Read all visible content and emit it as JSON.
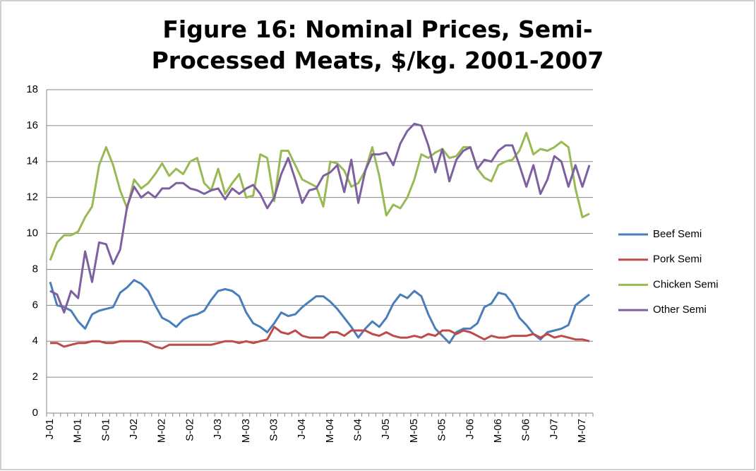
{
  "chart_data": {
    "type": "line",
    "title": "Figure 16: Nominal Prices, Semi-Processed Meats, $/kg. 2001-2007",
    "categories": [
      "J-01",
      null,
      null,
      null,
      "M-01",
      null,
      null,
      null,
      "S-01",
      null,
      null,
      null,
      "J-02",
      null,
      null,
      null,
      "M-02",
      null,
      null,
      null,
      "S-02",
      null,
      null,
      null,
      "J-03",
      null,
      null,
      null,
      "M-03",
      null,
      null,
      null,
      "S-03",
      null,
      null,
      null,
      "J-04",
      null,
      null,
      null,
      "M-04",
      null,
      null,
      null,
      "S-04",
      null,
      null,
      null,
      "J-05",
      null,
      null,
      null,
      "M-05",
      null,
      null,
      null,
      "S-05",
      null,
      null,
      null,
      "J-06",
      null,
      null,
      null,
      "M-06",
      null,
      null,
      null,
      "S-06",
      null,
      null,
      null,
      "J-07",
      null,
      null,
      null,
      "M-07",
      null
    ],
    "series": [
      {
        "name": "Beef Semi",
        "color": "#4a7ebb",
        "values": [
          7.3,
          6.0,
          5.9,
          5.7,
          5.1,
          4.7,
          5.5,
          5.7,
          5.8,
          5.9,
          6.7,
          7.0,
          7.4,
          7.2,
          6.8,
          6.0,
          5.3,
          5.1,
          4.8,
          5.2,
          5.4,
          5.5,
          5.7,
          6.3,
          6.8,
          6.9,
          6.8,
          6.5,
          5.6,
          5.0,
          4.8,
          4.5,
          5.0,
          5.6,
          5.4,
          5.5,
          5.9,
          6.2,
          6.5,
          6.5,
          6.2,
          5.8,
          5.3,
          4.8,
          4.2,
          4.7,
          5.1,
          4.8,
          5.3,
          6.1,
          6.6,
          6.4,
          6.8,
          6.5,
          5.5,
          4.7,
          4.3,
          3.9,
          4.5,
          4.7,
          4.7,
          5.0,
          5.9,
          6.1,
          6.7,
          6.6,
          6.1,
          5.3,
          4.9,
          4.4,
          4.1,
          4.5,
          4.6,
          4.7,
          4.9,
          6.0,
          6.3,
          6.6
        ]
      },
      {
        "name": "Pork Semi",
        "color": "#be4b48",
        "values": [
          3.9,
          3.9,
          3.7,
          3.8,
          3.9,
          3.9,
          4.0,
          4.0,
          3.9,
          3.9,
          4.0,
          4.0,
          4.0,
          4.0,
          3.9,
          3.7,
          3.6,
          3.8,
          3.8,
          3.8,
          3.8,
          3.8,
          3.8,
          3.8,
          3.9,
          4.0,
          4.0,
          3.9,
          4.0,
          3.9,
          4.0,
          4.1,
          4.8,
          4.5,
          4.4,
          4.6,
          4.3,
          4.2,
          4.2,
          4.2,
          4.5,
          4.5,
          4.3,
          4.6,
          4.6,
          4.6,
          4.4,
          4.3,
          4.5,
          4.3,
          4.2,
          4.2,
          4.3,
          4.2,
          4.4,
          4.3,
          4.6,
          4.6,
          4.4,
          4.6,
          4.5,
          4.3,
          4.1,
          4.3,
          4.2,
          4.2,
          4.3,
          4.3,
          4.3,
          4.4,
          4.2,
          4.4,
          4.2,
          4.3,
          4.2,
          4.1,
          4.1,
          4.0
        ]
      },
      {
        "name": "Chicken Semi",
        "color": "#98b954",
        "values": [
          8.5,
          9.5,
          9.9,
          9.9,
          10.1,
          10.9,
          11.5,
          13.8,
          14.8,
          13.8,
          12.4,
          11.4,
          13.0,
          12.5,
          12.8,
          13.3,
          13.9,
          13.2,
          13.6,
          13.3,
          14.0,
          14.2,
          12.8,
          12.4,
          13.6,
          12.2,
          12.8,
          13.3,
          12.0,
          12.1,
          14.4,
          14.2,
          11.8,
          14.6,
          14.6,
          13.8,
          13.0,
          12.8,
          12.6,
          11.5,
          14.0,
          13.9,
          13.5,
          12.6,
          12.8,
          13.5,
          14.8,
          13.2,
          11.0,
          11.6,
          11.4,
          12.0,
          13.0,
          14.4,
          14.2,
          14.5,
          14.7,
          14.2,
          14.3,
          14.8,
          14.8,
          13.6,
          13.1,
          12.9,
          13.8,
          14.0,
          14.1,
          14.6,
          15.6,
          14.4,
          14.7,
          14.6,
          14.8,
          15.1,
          14.8,
          12.5,
          10.9,
          11.1
        ]
      },
      {
        "name": "Other Semi",
        "color": "#7d60a0",
        "values": [
          6.8,
          6.6,
          5.6,
          6.8,
          6.4,
          9.0,
          7.3,
          9.5,
          9.4,
          8.3,
          9.1,
          11.5,
          12.6,
          12.0,
          12.3,
          12.0,
          12.5,
          12.5,
          12.8,
          12.8,
          12.5,
          12.4,
          12.2,
          12.4,
          12.5,
          11.9,
          12.5,
          12.2,
          12.5,
          12.7,
          12.2,
          11.4,
          12.0,
          13.3,
          14.2,
          13.0,
          11.7,
          12.4,
          12.5,
          13.2,
          13.4,
          13.8,
          12.3,
          14.1,
          11.7,
          13.5,
          14.4,
          14.4,
          14.5,
          13.8,
          15.0,
          15.7,
          16.1,
          16.0,
          14.9,
          13.4,
          14.7,
          12.9,
          14.1,
          14.6,
          14.8,
          13.6,
          14.1,
          14.0,
          14.6,
          14.9,
          14.9,
          13.8,
          12.6,
          13.8,
          12.2,
          13.0,
          14.3,
          14.0,
          12.6,
          13.8,
          12.6,
          13.8
        ]
      }
    ],
    "ylim": [
      0,
      18
    ],
    "yticks": [
      0,
      2,
      4,
      6,
      8,
      10,
      12,
      14,
      16,
      18
    ],
    "grid": true,
    "legend": "right"
  }
}
